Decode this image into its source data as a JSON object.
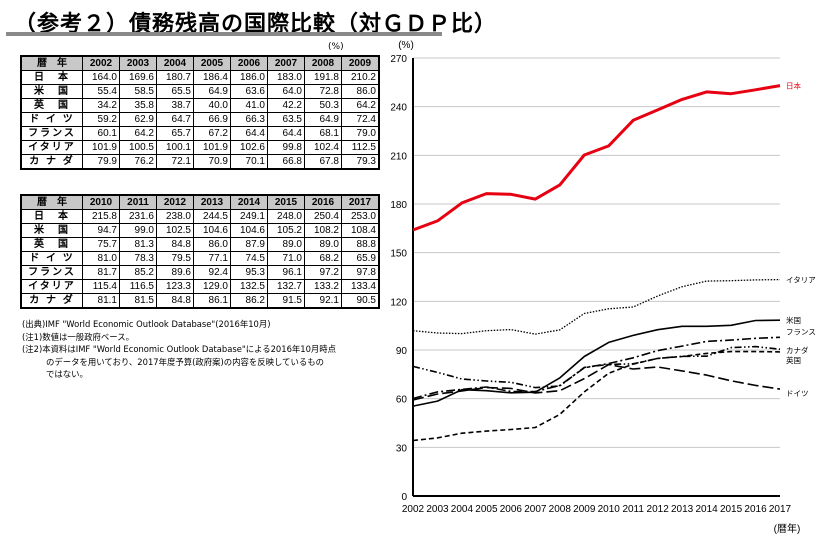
{
  "title": "（参考２）債務残高の国際比較（対ＧＤＰ比）",
  "table": {
    "unit": "(%)",
    "header_label": "暦　年",
    "countries": [
      "日　本",
      "米　国",
      "英　国",
      "ド イ ツ",
      "フランス",
      "イタリア",
      "カ ナ ダ"
    ],
    "part1": {
      "years": [
        "2002",
        "2003",
        "2004",
        "2005",
        "2006",
        "2007",
        "2008",
        "2009"
      ],
      "rows": [
        [
          "164.0",
          "169.6",
          "180.7",
          "186.4",
          "186.0",
          "183.0",
          "191.8",
          "210.2"
        ],
        [
          "55.4",
          "58.5",
          "65.5",
          "64.9",
          "63.6",
          "64.0",
          "72.8",
          "86.0"
        ],
        [
          "34.2",
          "35.8",
          "38.7",
          "40.0",
          "41.0",
          "42.2",
          "50.3",
          "64.2"
        ],
        [
          "59.2",
          "62.9",
          "64.7",
          "66.9",
          "66.3",
          "63.5",
          "64.9",
          "72.4"
        ],
        [
          "60.1",
          "64.2",
          "65.7",
          "67.2",
          "64.4",
          "64.4",
          "68.1",
          "79.0"
        ],
        [
          "101.9",
          "100.5",
          "100.1",
          "101.9",
          "102.6",
          "99.8",
          "102.4",
          "112.5"
        ],
        [
          "79.9",
          "76.2",
          "72.1",
          "70.9",
          "70.1",
          "66.8",
          "67.8",
          "79.3"
        ]
      ]
    },
    "part2": {
      "years": [
        "2010",
        "2011",
        "2012",
        "2013",
        "2014",
        "2015",
        "2016",
        "2017"
      ],
      "rows": [
        [
          "215.8",
          "231.6",
          "238.0",
          "244.5",
          "249.1",
          "248.0",
          "250.4",
          "253.0"
        ],
        [
          "94.7",
          "99.0",
          "102.5",
          "104.6",
          "104.6",
          "105.2",
          "108.2",
          "108.4"
        ],
        [
          "75.7",
          "81.3",
          "84.8",
          "86.0",
          "87.9",
          "89.0",
          "89.0",
          "88.8"
        ],
        [
          "81.0",
          "78.3",
          "79.5",
          "77.1",
          "74.5",
          "71.0",
          "68.2",
          "65.9"
        ],
        [
          "81.7",
          "85.2",
          "89.6",
          "92.4",
          "95.3",
          "96.1",
          "97.2",
          "97.8"
        ],
        [
          "115.4",
          "116.5",
          "123.3",
          "129.0",
          "132.5",
          "132.7",
          "133.2",
          "133.4"
        ],
        [
          "81.1",
          "81.5",
          "84.8",
          "86.1",
          "86.2",
          "91.5",
          "92.1",
          "90.5"
        ]
      ]
    }
  },
  "notes": {
    "source": "(出典)IMF \"World Economic Outlook Database\"(2016年10月)",
    "note1": "(注1)数値は一般政府ベース。",
    "note2_line1": "(注2)本資料はIMF \"World Economic Outlook Database\"による2016年10月時点",
    "note2_line2": "のデータを用いており、2017年度予算(政府案)の内容を反映しているもの",
    "note2_line3": "ではない。"
  },
  "chart_data": {
    "type": "line",
    "title": "",
    "xlabel": "(暦年)",
    "ylabel": "(%)",
    "ylim": [
      0,
      270
    ],
    "yticks": [
      "0",
      "30",
      "60",
      "90",
      "120",
      "150",
      "180",
      "210",
      "240",
      "270"
    ],
    "x": [
      "2002",
      "2003",
      "2004",
      "2005",
      "2006",
      "2007",
      "2008",
      "2009",
      "2010",
      "2011",
      "2012",
      "2013",
      "2014",
      "2015",
      "2016",
      "2017"
    ],
    "grid": true,
    "series": [
      {
        "name": "日本",
        "color": "#e60012",
        "style": "solid-thick",
        "values": [
          164.0,
          169.6,
          180.7,
          186.4,
          186.0,
          183.0,
          191.8,
          210.2,
          215.8,
          231.6,
          238.0,
          244.5,
          249.1,
          248.0,
          250.4,
          253.0
        ]
      },
      {
        "name": "イタリア",
        "color": "#000000",
        "style": "dotted",
        "values": [
          101.9,
          100.5,
          100.1,
          101.9,
          102.6,
          99.8,
          102.4,
          112.5,
          115.4,
          116.5,
          123.3,
          129.0,
          132.5,
          132.7,
          133.2,
          133.4
        ]
      },
      {
        "name": "米国",
        "color": "#000000",
        "style": "solid",
        "values": [
          55.4,
          58.5,
          65.5,
          64.9,
          63.6,
          64.0,
          72.8,
          86.0,
          94.7,
          99.0,
          102.5,
          104.6,
          104.6,
          105.2,
          108.2,
          108.4
        ]
      },
      {
        "name": "フランス",
        "color": "#000000",
        "style": "dash-dot",
        "values": [
          60.1,
          64.2,
          65.7,
          67.2,
          64.4,
          64.4,
          68.1,
          79.0,
          81.7,
          85.2,
          89.6,
          92.4,
          95.3,
          96.1,
          97.2,
          97.8
        ]
      },
      {
        "name": "カナダ",
        "color": "#000000",
        "style": "dash-dot-dot",
        "values": [
          79.9,
          76.2,
          72.1,
          70.9,
          70.1,
          66.8,
          67.8,
          79.3,
          81.1,
          81.5,
          84.8,
          86.1,
          86.2,
          91.5,
          92.1,
          90.5
        ]
      },
      {
        "name": "英国",
        "color": "#000000",
        "style": "short-dash",
        "values": [
          34.2,
          35.8,
          38.7,
          40.0,
          41.0,
          42.2,
          50.3,
          64.2,
          75.7,
          81.3,
          84.8,
          86.0,
          87.9,
          89.0,
          89.0,
          88.8
        ]
      },
      {
        "name": "ドイツ",
        "color": "#000000",
        "style": "long-dash",
        "values": [
          59.2,
          62.9,
          64.7,
          66.9,
          66.3,
          63.5,
          64.9,
          72.4,
          81.0,
          78.3,
          79.5,
          77.1,
          74.5,
          71.0,
          68.2,
          65.9
        ]
      }
    ]
  }
}
